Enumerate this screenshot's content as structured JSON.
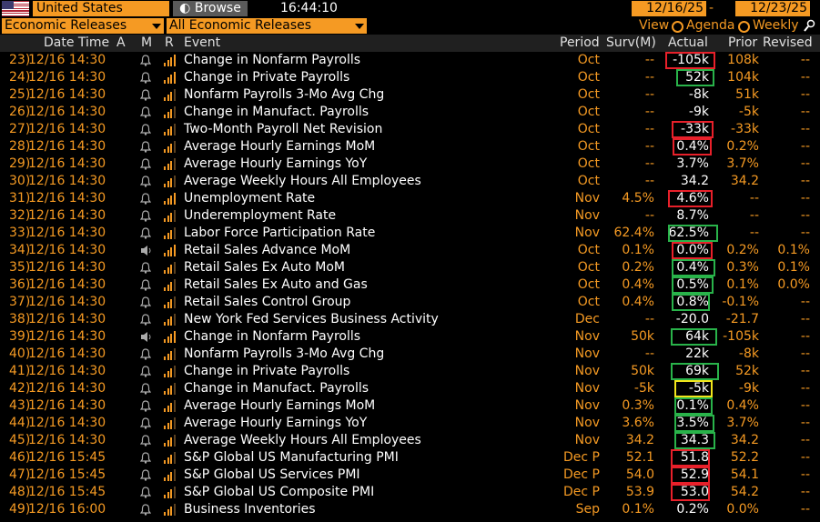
{
  "topbar": {
    "country": "United States",
    "browse": "Browse",
    "time": "16:44:10",
    "date_from": "12/16/25",
    "date_sep": "-",
    "date_to": "12/23/25"
  },
  "filters": {
    "category": "Economic Releases",
    "subcategory": "All Economic Releases",
    "view_label": "View",
    "agenda_label": "Agenda",
    "weekly_label": "Weekly"
  },
  "columns": {
    "datetime": "Date Time",
    "a": "A",
    "m": "M",
    "r": "R",
    "event": "Event",
    "period": "Period",
    "surv": "Surv(M)",
    "actual": "Actual",
    "prior": "Prior",
    "revised": "Revised"
  },
  "colors": {
    "accent": "#f59a23",
    "red_box": "#e8202a",
    "green_box": "#29b34a",
    "yellow_box": "#f2e51b"
  },
  "rows": [
    {
      "num": "23)",
      "date": "12/16 14:30",
      "alert": "bell",
      "rel": 4,
      "event": "Change in Nonfarm Payrolls",
      "period": "Oct",
      "surv": "--",
      "actual": "-105k",
      "prior": "108k",
      "revised": "--",
      "box": "red"
    },
    {
      "num": "24)",
      "date": "12/16 14:30",
      "alert": "bell",
      "rel": 4,
      "event": "Change in Private Payrolls",
      "period": "Oct",
      "surv": "--",
      "actual": "52k",
      "prior": "104k",
      "revised": "--",
      "box": "green"
    },
    {
      "num": "25)",
      "date": "12/16 14:30",
      "alert": "bell",
      "rel": 3,
      "event": "Nonfarm Payrolls 3-Mo Avg Chg",
      "period": "Oct",
      "surv": "--",
      "actual": "-8k",
      "prior": "51k",
      "revised": "--",
      "box": ""
    },
    {
      "num": "26)",
      "date": "12/16 14:30",
      "alert": "bell",
      "rel": 3,
      "event": "Change in Manufact. Payrolls",
      "period": "Oct",
      "surv": "--",
      "actual": "-9k",
      "prior": "-5k",
      "revised": "--",
      "box": ""
    },
    {
      "num": "27)",
      "date": "12/16 14:30",
      "alert": "bell",
      "rel": 3,
      "event": "Two-Month Payroll Net Revision",
      "period": "Oct",
      "surv": "--",
      "actual": "-33k",
      "prior": "-33k",
      "revised": "--",
      "box": "red"
    },
    {
      "num": "28)",
      "date": "12/16 14:30",
      "alert": "bell",
      "rel": 3,
      "event": "Average Hourly Earnings MoM",
      "period": "Oct",
      "surv": "--",
      "actual": "0.4%",
      "prior": "0.2%",
      "revised": "--",
      "box": "red"
    },
    {
      "num": "29)",
      "date": "12/16 14:30",
      "alert": "bell",
      "rel": 3,
      "event": "Average Hourly Earnings YoY",
      "period": "Oct",
      "surv": "--",
      "actual": "3.7%",
      "prior": "3.7%",
      "revised": "--",
      "box": ""
    },
    {
      "num": "30)",
      "date": "12/16 14:30",
      "alert": "bell",
      "rel": 3,
      "event": "Average Weekly Hours All Employees",
      "period": "Oct",
      "surv": "--",
      "actual": "34.2",
      "prior": "34.2",
      "revised": "--",
      "box": ""
    },
    {
      "num": "31)",
      "date": "12/16 14:30",
      "alert": "bell",
      "rel": 4,
      "event": "Unemployment Rate",
      "period": "Nov",
      "surv": "4.5%",
      "actual": "4.6%",
      "prior": "--",
      "revised": "--",
      "box": "red"
    },
    {
      "num": "32)",
      "date": "12/16 14:30",
      "alert": "bell",
      "rel": 3,
      "event": "Underemployment Rate",
      "period": "Nov",
      "surv": "--",
      "actual": "8.7%",
      "prior": "--",
      "revised": "--",
      "box": ""
    },
    {
      "num": "33)",
      "date": "12/16 14:30",
      "alert": "bell",
      "rel": 3,
      "event": "Labor Force Participation Rate",
      "period": "Nov",
      "surv": "62.4%",
      "actual": "62.5%",
      "prior": "--",
      "revised": "--",
      "box": "green"
    },
    {
      "num": "34)",
      "date": "12/16 14:30",
      "alert": "speaker",
      "rel": 4,
      "event": "Retail Sales Advance MoM",
      "period": "Oct",
      "surv": "0.1%",
      "actual": "0.0%",
      "prior": "0.2%",
      "revised": "0.1%",
      "box": "red"
    },
    {
      "num": "35)",
      "date": "12/16 14:30",
      "alert": "bell",
      "rel": 3,
      "event": "Retail Sales Ex Auto MoM",
      "period": "Oct",
      "surv": "0.2%",
      "actual": "0.4%",
      "prior": "0.3%",
      "revised": "0.1%",
      "box": "green"
    },
    {
      "num": "36)",
      "date": "12/16 14:30",
      "alert": "bell",
      "rel": 3,
      "event": "Retail Sales Ex Auto and Gas",
      "period": "Oct",
      "surv": "0.4%",
      "actual": "0.5%",
      "prior": "0.1%",
      "revised": "0.0%",
      "box": "green"
    },
    {
      "num": "37)",
      "date": "12/16 14:30",
      "alert": "bell",
      "rel": 3,
      "event": "Retail Sales Control Group",
      "period": "Oct",
      "surv": "0.4%",
      "actual": "0.8%",
      "prior": "-0.1%",
      "revised": "--",
      "box": "green"
    },
    {
      "num": "38)",
      "date": "12/16 14:30",
      "alert": "bell",
      "rel": 3,
      "event": "New York Fed Services Business Activity",
      "period": "Dec",
      "surv": "--",
      "actual": "-20.0",
      "prior": "-21.7",
      "revised": "--",
      "box": ""
    },
    {
      "num": "39)",
      "date": "12/16 14:30",
      "alert": "speaker",
      "rel": 4,
      "event": "Change in Nonfarm Payrolls",
      "period": "Nov",
      "surv": "50k",
      "actual": "64k",
      "prior": "-105k",
      "revised": "--",
      "box": "green"
    },
    {
      "num": "40)",
      "date": "12/16 14:30",
      "alert": "bell",
      "rel": 3,
      "event": "Nonfarm Payrolls 3-Mo Avg Chg",
      "period": "Nov",
      "surv": "--",
      "actual": "22k",
      "prior": "-8k",
      "revised": "--",
      "box": ""
    },
    {
      "num": "41)",
      "date": "12/16 14:30",
      "alert": "bell",
      "rel": 3,
      "event": "Change in Private Payrolls",
      "period": "Nov",
      "surv": "50k",
      "actual": "69k",
      "prior": "52k",
      "revised": "--",
      "box": "green"
    },
    {
      "num": "42)",
      "date": "12/16 14:30",
      "alert": "bell",
      "rel": 3,
      "event": "Change in Manufact. Payrolls",
      "period": "Nov",
      "surv": "-5k",
      "actual": "-5k",
      "prior": "-9k",
      "revised": "--",
      "box": "yellow"
    },
    {
      "num": "43)",
      "date": "12/16 14:30",
      "alert": "bell",
      "rel": 3,
      "event": "Average Hourly Earnings MoM",
      "period": "Nov",
      "surv": "0.3%",
      "actual": "0.1%",
      "prior": "0.4%",
      "revised": "--",
      "box": "green"
    },
    {
      "num": "44)",
      "date": "12/16 14:30",
      "alert": "bell",
      "rel": 3,
      "event": "Average Hourly Earnings YoY",
      "period": "Nov",
      "surv": "3.6%",
      "actual": "3.5%",
      "prior": "3.7%",
      "revised": "--",
      "box": "green"
    },
    {
      "num": "45)",
      "date": "12/16 14:30",
      "alert": "bell",
      "rel": 3,
      "event": "Average Weekly Hours All Employees",
      "period": "Nov",
      "surv": "34.2",
      "actual": "34.3",
      "prior": "34.2",
      "revised": "--",
      "box": "green"
    },
    {
      "num": "46)",
      "date": "12/16 15:45",
      "alert": "bell",
      "rel": 3,
      "event": "S&P Global US Manufacturing PMI",
      "period": "Dec P",
      "surv": "52.1",
      "actual": "51.8",
      "prior": "52.2",
      "revised": "--",
      "box": "red"
    },
    {
      "num": "47)",
      "date": "12/16 15:45",
      "alert": "bell",
      "rel": 3,
      "event": "S&P Global US Services PMI",
      "period": "Dec P",
      "surv": "54.0",
      "actual": "52.9",
      "prior": "54.1",
      "revised": "--",
      "box": "red"
    },
    {
      "num": "48)",
      "date": "12/16 15:45",
      "alert": "bell",
      "rel": 3,
      "event": "S&P Global US Composite PMI",
      "period": "Dec P",
      "surv": "53.9",
      "actual": "53.0",
      "prior": "54.2",
      "revised": "--",
      "box": "red"
    },
    {
      "num": "49)",
      "date": "12/16 16:00",
      "alert": "bell",
      "rel": 3,
      "event": "Business Inventories",
      "period": "Sep",
      "surv": "0.1%",
      "actual": "0.2%",
      "prior": "0.0%",
      "revised": "--",
      "box": ""
    }
  ]
}
